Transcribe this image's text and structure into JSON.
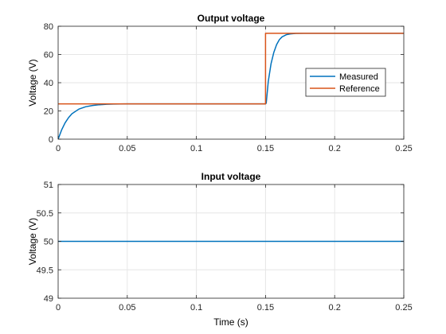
{
  "chart_data": [
    {
      "type": "line",
      "title": "Output voltage",
      "xlabel": "",
      "ylabel": "Voltage (V)",
      "xlim": [
        0,
        0.25
      ],
      "ylim": [
        0,
        80
      ],
      "xticks": [
        0,
        0.05,
        0.1,
        0.15,
        0.2,
        0.25
      ],
      "xtick_labels": [
        "0",
        "0.05",
        "0.1",
        "0.15",
        "0.2",
        "0.25"
      ],
      "yticks": [
        0,
        20,
        40,
        60,
        80
      ],
      "ytick_labels": [
        "0",
        "20",
        "40",
        "60",
        "80"
      ],
      "grid": true,
      "legend": "right",
      "series": [
        {
          "name": "Measured",
          "color": "#0072BD",
          "x": [
            0,
            0.0025,
            0.005,
            0.0075,
            0.01,
            0.015,
            0.02,
            0.025,
            0.03,
            0.035,
            0.04,
            0.045,
            0.05,
            0.06,
            0.08,
            0.1,
            0.12,
            0.14,
            0.15,
            0.1505,
            0.152,
            0.154,
            0.156,
            0.158,
            0.16,
            0.162,
            0.165,
            0.168,
            0.172,
            0.18,
            0.2,
            0.22,
            0.25
          ],
          "y": [
            0,
            6.5,
            11.5,
            15.2,
            18.0,
            21.3,
            23.0,
            23.9,
            24.4,
            24.7,
            24.85,
            24.93,
            24.97,
            25,
            25,
            25,
            25,
            25,
            25,
            25.5,
            41,
            53.5,
            61.5,
            67,
            70.5,
            72.5,
            74,
            74.6,
            74.9,
            75,
            75,
            75,
            75
          ]
        },
        {
          "name": "Reference",
          "color": "#D95319",
          "x": [
            0,
            0.15,
            0.15,
            0.25
          ],
          "y": [
            25,
            25,
            75,
            75
          ]
        }
      ]
    },
    {
      "type": "line",
      "title": "Input voltage",
      "xlabel": "Time (s)",
      "ylabel": "Voltage (V)",
      "xlim": [
        0,
        0.25
      ],
      "ylim": [
        49,
        51
      ],
      "xticks": [
        0,
        0.05,
        0.1,
        0.15,
        0.2,
        0.25
      ],
      "xtick_labels": [
        "0",
        "0.05",
        "0.1",
        "0.15",
        "0.2",
        "0.25"
      ],
      "yticks": [
        49,
        49.5,
        50,
        50.5,
        51
      ],
      "ytick_labels": [
        "49",
        "49.5",
        "50",
        "50.5",
        "51"
      ],
      "grid": true,
      "series": [
        {
          "color": "#0072BD",
          "x": [
            0,
            0.25
          ],
          "y": [
            50,
            50
          ]
        }
      ]
    }
  ]
}
